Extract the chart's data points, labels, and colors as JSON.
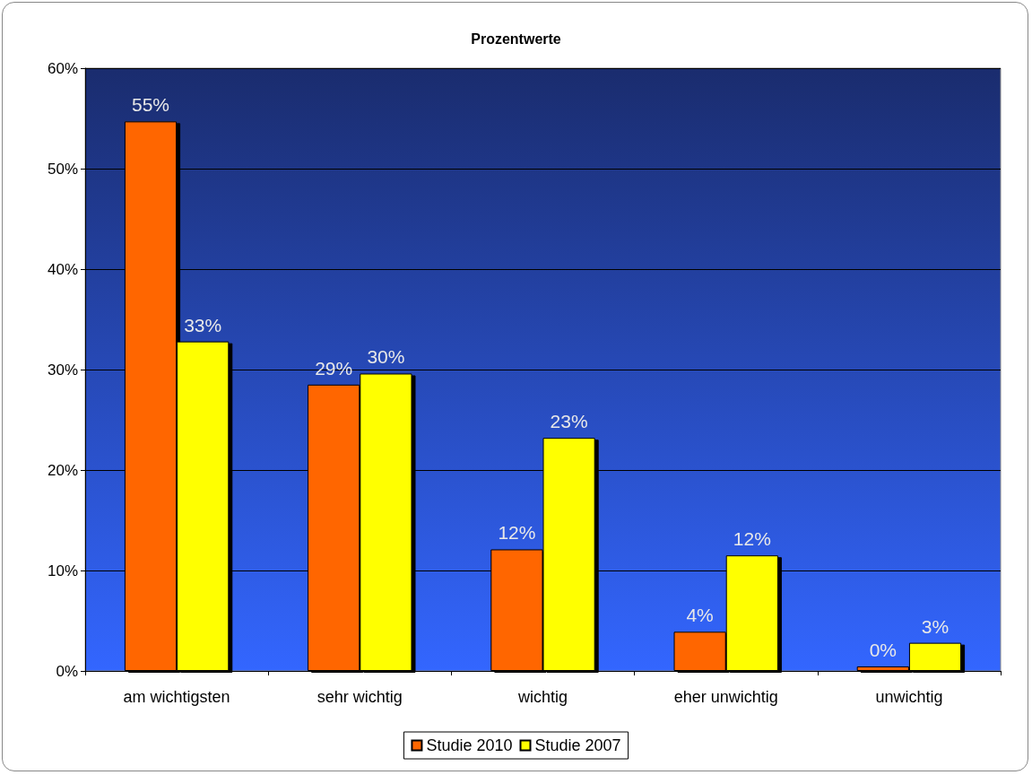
{
  "chart_data": {
    "type": "bar",
    "title": "Prozentwerte",
    "categories": [
      "am wichtigsten",
      "sehr wichtig",
      "wichtig",
      "eher unwichtig",
      "unwichtig"
    ],
    "series": [
      {
        "name": "Studie 2010",
        "color": "#ff6600",
        "values": [
          54.7,
          28.5,
          12.1,
          3.9,
          0.45
        ],
        "value_labels": [
          "55%",
          "29%",
          "12%",
          "4%",
          "0%"
        ]
      },
      {
        "name": "Studie 2007",
        "color": "#ffff00",
        "values": [
          32.8,
          29.6,
          23.2,
          11.5,
          2.8
        ],
        "value_labels": [
          "33%",
          "30%",
          "23%",
          "12%",
          "3%"
        ]
      }
    ],
    "ylim": [
      0,
      60
    ],
    "yticks": [
      {
        "value": 0,
        "label": "0%"
      },
      {
        "value": 10,
        "label": "10%"
      },
      {
        "value": 20,
        "label": "20%"
      },
      {
        "value": 30,
        "label": "30%"
      },
      {
        "value": 40,
        "label": "40%"
      },
      {
        "value": 50,
        "label": "50%"
      },
      {
        "value": 60,
        "label": "60%"
      }
    ],
    "grid": "y",
    "legend": "bottom"
  }
}
